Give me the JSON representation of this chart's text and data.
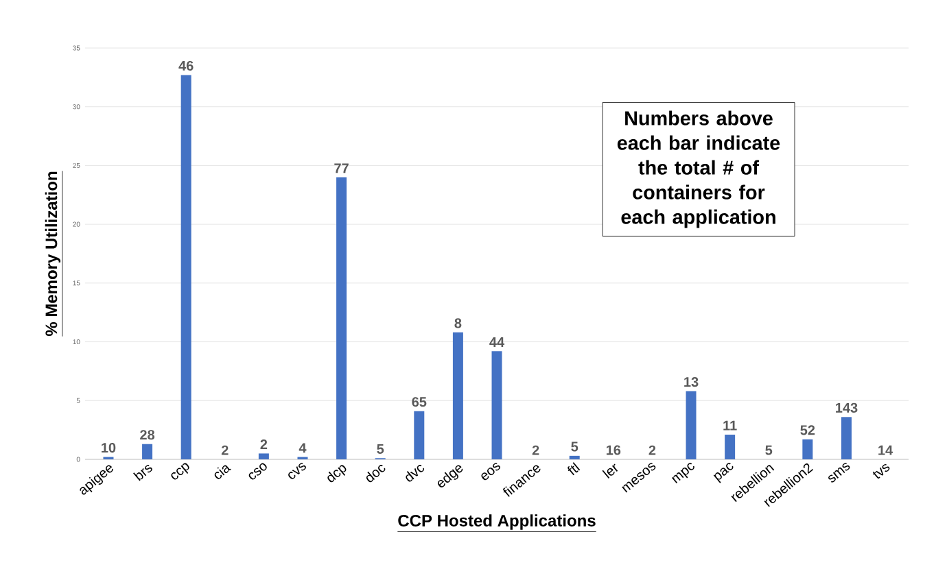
{
  "chart_data": {
    "type": "bar",
    "xlabel": "CCP Hosted Applications",
    "ylabel": "% Memory Utilization",
    "categories": [
      "apigee",
      "brs",
      "ccp",
      "cia",
      "cso",
      "cvs",
      "dcp",
      "doc",
      "dvc",
      "edge",
      "eos",
      "finance",
      "ftl",
      "ler",
      "mesos",
      "mpc",
      "pac",
      "rebellion",
      "rebellion2",
      "sms",
      "tvs"
    ],
    "values": [
      0.2,
      1.3,
      32.7,
      0,
      0.5,
      0.2,
      24,
      0.1,
      4.1,
      10.8,
      9.2,
      0,
      0.3,
      0,
      0,
      5.8,
      2.1,
      0,
      1.7,
      3.6,
      0
    ],
    "color": "#4472c4",
    "ylim": [
      0,
      35
    ],
    "yticks": [
      0,
      5,
      10,
      15,
      20,
      25,
      30,
      35
    ],
    "grid": "y",
    "annotations": [
      {
        "text": "10",
        "x": "apigee",
        "y": 0.2
      },
      {
        "text": "28",
        "x": "brs",
        "y": 1.3
      },
      {
        "text": "46",
        "x": "ccp",
        "y": 32.7
      },
      {
        "text": "2",
        "x": "cia",
        "y": 0
      },
      {
        "text": "2",
        "x": "cso",
        "y": 0.5
      },
      {
        "text": "4",
        "x": "cvs",
        "y": 0.2
      },
      {
        "text": "77",
        "x": "dcp",
        "y": 24
      },
      {
        "text": "5",
        "x": "doc",
        "y": 0.1
      },
      {
        "text": "65",
        "x": "dvc",
        "y": 4.1
      },
      {
        "text": "8",
        "x": "edge",
        "y": 10.8
      },
      {
        "text": "44",
        "x": "eos",
        "y": 9.2
      },
      {
        "text": "2",
        "x": "finance",
        "y": 0
      },
      {
        "text": "5",
        "x": "ftl",
        "y": 0.3
      },
      {
        "text": "16",
        "x": "ler",
        "y": 0
      },
      {
        "text": "2",
        "x": "mesos",
        "y": 0
      },
      {
        "text": "13",
        "x": "mpc",
        "y": 5.8
      },
      {
        "text": "11",
        "x": "pac",
        "y": 2.1
      },
      {
        "text": "5",
        "x": "rebellion",
        "y": 0
      },
      {
        "text": "52",
        "x": "rebellion2",
        "y": 1.7
      },
      {
        "text": "143",
        "x": "sms",
        "y": 3.6
      },
      {
        "text": "14",
        "x": "tvs",
        "y": 0
      },
      "Numbers above each bar indicate the total # of containers for each application"
    ]
  }
}
